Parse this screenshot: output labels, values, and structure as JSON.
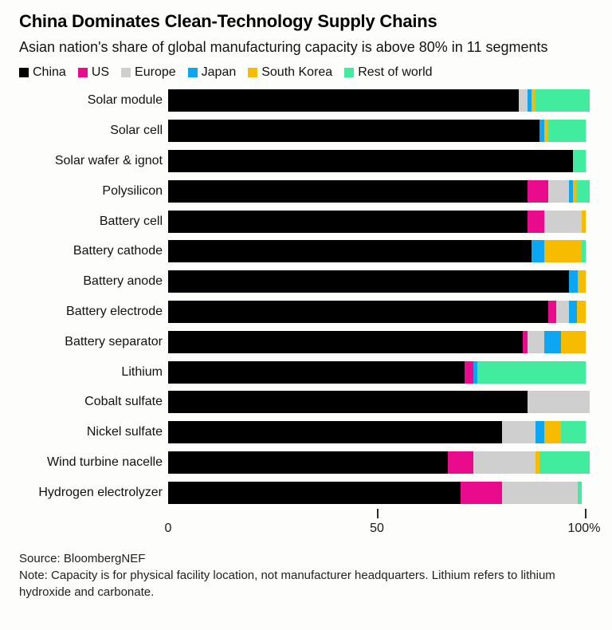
{
  "title": "China Dominates Clean-Technology Supply Chains",
  "subtitle": "Asian nation's share of global manufacturing capacity is above 80% in 11 segments",
  "chart_data": {
    "type": "bar",
    "orientation": "horizontal",
    "stacked": true,
    "unit": "%",
    "title": "China Dominates Clean-Technology Supply Chains",
    "xlabel": "",
    "ylabel": "",
    "xlim": [
      0,
      100
    ],
    "grid": false,
    "legend_position": "top",
    "x_axis": {
      "min": 0,
      "max": 100,
      "ticks": [
        "0",
        "50",
        "100%"
      ]
    },
    "categories": [
      "Solar module",
      "Solar cell",
      "Solar wafer & ignot",
      "Polysilicon",
      "Battery cell",
      "Battery cathode",
      "Battery anode",
      "Battery electrode",
      "Battery separator",
      "Lithium",
      "Cobalt sulfate",
      "Nickel sulfate",
      "Wind turbine nacelle",
      "Hydrogen electrolyzer"
    ],
    "series": [
      {
        "name": "China",
        "color": "#000000",
        "values": [
          84,
          89,
          97,
          86,
          86,
          87,
          96,
          91,
          85,
          71,
          86,
          80,
          67,
          70
        ]
      },
      {
        "name": "US",
        "color": "#EA0B8C",
        "values": [
          0,
          0,
          0,
          5,
          4,
          0,
          0,
          2,
          1,
          2,
          0,
          0,
          6,
          10
        ]
      },
      {
        "name": "Europe",
        "color": "#CFCFCF",
        "values": [
          2,
          0,
          0,
          5,
          9,
          0,
          0,
          3,
          4,
          0,
          15,
          8,
          15,
          18
        ]
      },
      {
        "name": "Japan",
        "color": "#0CA6F2",
        "values": [
          1,
          1,
          0,
          1,
          0,
          3,
          2,
          2,
          4,
          1,
          0,
          2,
          0,
          0
        ]
      },
      {
        "name": "South Korea",
        "color": "#F7BB00",
        "values": [
          1,
          1,
          0,
          1,
          1,
          9,
          2,
          2,
          6,
          0,
          0,
          4,
          1,
          0
        ]
      },
      {
        "name": "Rest of world",
        "color": "#42EC9E",
        "values": [
          13,
          9,
          3,
          3,
          0,
          1,
          0,
          0,
          0,
          26,
          0,
          6,
          12,
          1
        ]
      }
    ]
  },
  "footer": {
    "source": "Source: BloombergNEF",
    "note": "Note: Capacity is for physical facility location, not manufacturer headquarters. Lithium refers to lithium hydroxide and carbonate."
  }
}
